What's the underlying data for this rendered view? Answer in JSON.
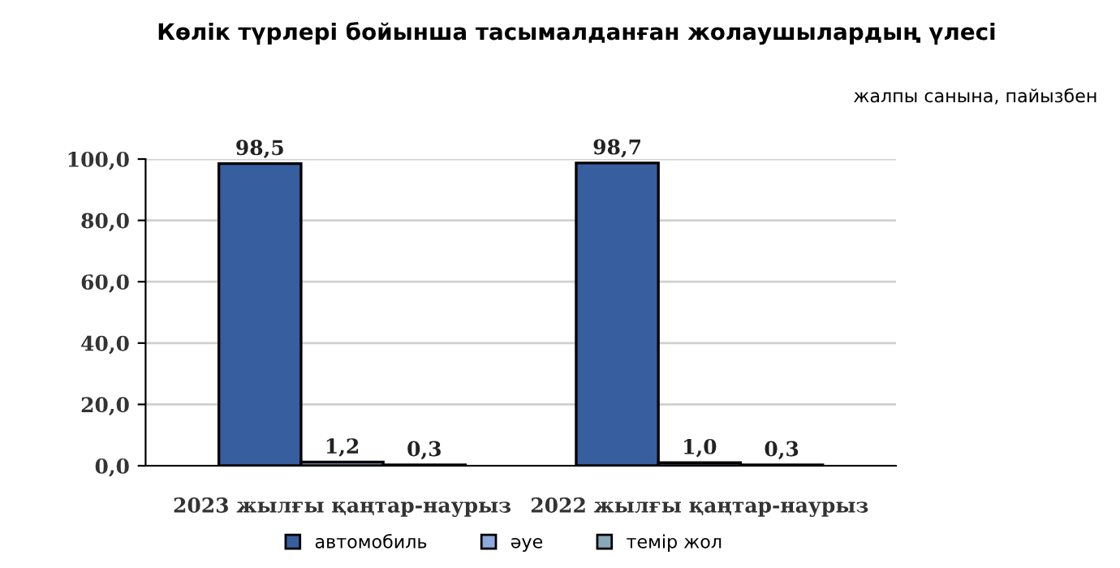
{
  "chart_data": {
    "type": "bar",
    "title": "Көлік түрлері бойынша тасымалданған жолаушылардың үлесі",
    "subtitle": "жалпы санына, пайызбен",
    "categories": [
      "2023 жылғы қаңтар-наурыз",
      "2022 жылғы қаңтар-наурыз"
    ],
    "series": [
      {
        "name": "автомобиль",
        "color": "#375e9e",
        "values": [
          98.5,
          98.7
        ],
        "value_labels": [
          "98,5",
          "98,7"
        ]
      },
      {
        "name": "әуе",
        "color": "#8eaadc",
        "values": [
          1.2,
          1.0
        ],
        "value_labels": [
          "1,2",
          "1,0"
        ]
      },
      {
        "name": "темір жол",
        "color": "#8aa8b8",
        "values": [
          0.3,
          0.3
        ],
        "value_labels": [
          "0,3",
          "0,3"
        ]
      }
    ],
    "ylim": [
      0,
      100
    ],
    "yticks": [
      {
        "value": 0,
        "label": "0,0"
      },
      {
        "value": 20,
        "label": "20,0"
      },
      {
        "value": 40,
        "label": "40,0"
      },
      {
        "value": 60,
        "label": "60,0"
      },
      {
        "value": 80,
        "label": "80,0"
      },
      {
        "value": 100,
        "label": "100,0"
      }
    ],
    "grid": "y",
    "legend": "bottom"
  }
}
